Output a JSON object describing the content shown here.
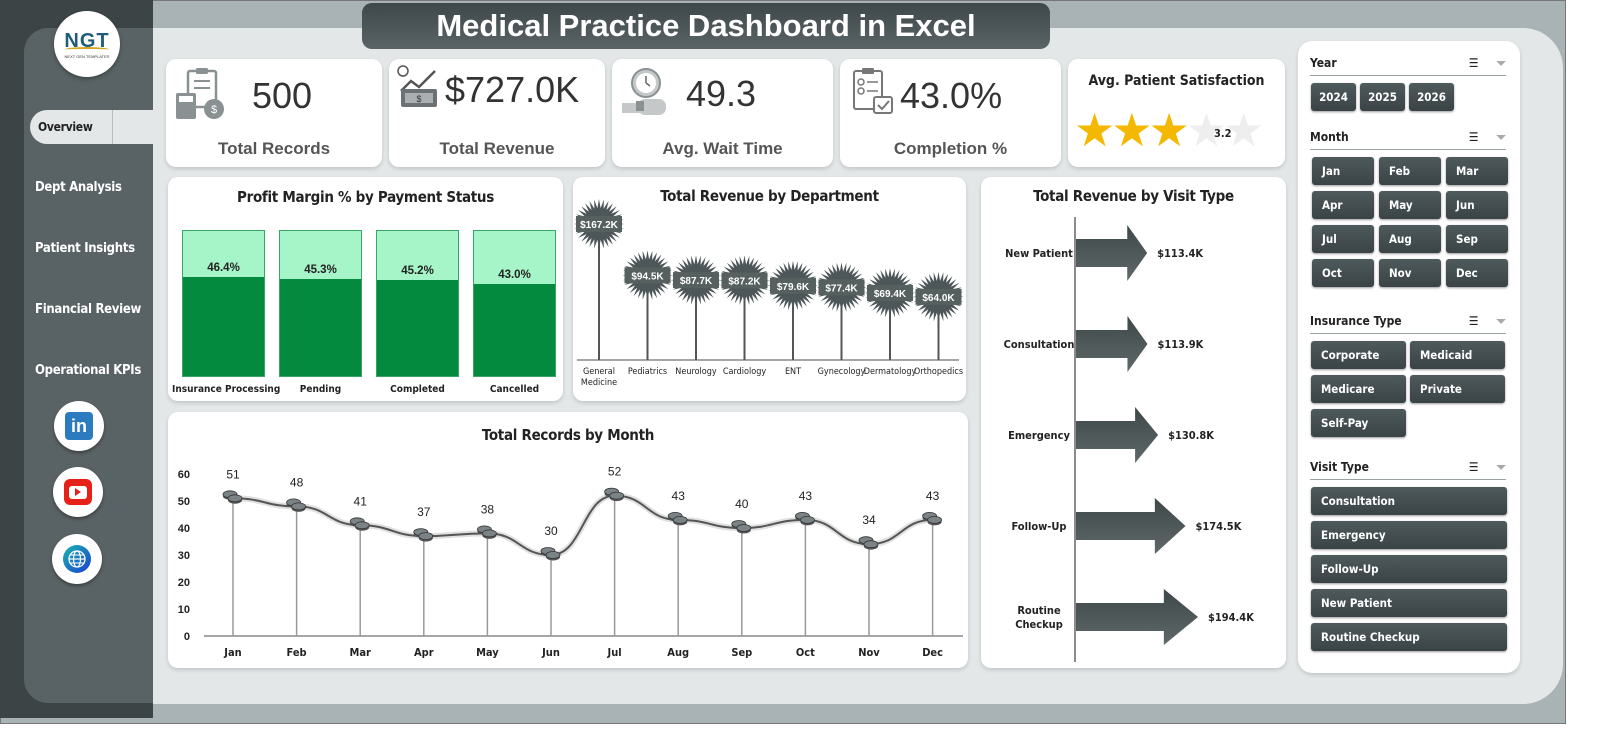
{
  "title": "Medical Practice Dashboard in Excel",
  "logo": {
    "text": "NGT",
    "tagline": "NEXT GEN TEMPLATES"
  },
  "nav": [
    {
      "label": "Overview",
      "active": true
    },
    {
      "label": "Dept Analysis"
    },
    {
      "label": "Patient Insights"
    },
    {
      "label": "Financial Review"
    },
    {
      "label": "Operational KPIs"
    }
  ],
  "social": [
    {
      "name": "linkedin",
      "glyph": "in",
      "color": "#2d7bbf"
    },
    {
      "name": "youtube",
      "glyph": "▶",
      "color": "#e62117"
    },
    {
      "name": "website",
      "glyph": "🌐",
      "color": "#1a6fc9"
    }
  ],
  "kpis": [
    {
      "value": "500",
      "label": "Total Records",
      "icon": "clipboard-calculator-icon"
    },
    {
      "value": "$727.0K",
      "label": "Total Revenue",
      "icon": "money-growth-icon"
    },
    {
      "value": "49.3",
      "label": "Avg. Wait Time",
      "icon": "clock-watch-icon"
    },
    {
      "value": "43.0%",
      "label": "Completion %",
      "icon": "checklist-icon"
    }
  ],
  "satisfaction": {
    "label": "Avg. Patient Satisfaction",
    "value": "3.2",
    "max": 5
  },
  "slicers": {
    "year": {
      "label": "Year",
      "items": [
        "2024",
        "2025",
        "2026"
      ]
    },
    "month": {
      "label": "Month",
      "items": [
        "Jan",
        "Feb",
        "Mar",
        "Apr",
        "May",
        "Jun",
        "Jul",
        "Aug",
        "Sep",
        "Oct",
        "Nov",
        "Dec"
      ]
    },
    "insurance": {
      "label": "Insurance Type",
      "items": [
        "Corporate",
        "Medicaid",
        "Medicare",
        "Private Insur...",
        "Self-Pay"
      ]
    },
    "visit": {
      "label": "Visit Type",
      "items": [
        "Consultation",
        "Emergency",
        "Follow-Up",
        "New Patient",
        "Routine Checkup"
      ]
    }
  },
  "chart_data": [
    {
      "type": "bar",
      "title": "Profit Margin % by Payment Status",
      "categories": [
        "Insurance Processing",
        "Pending",
        "Completed",
        "Cancelled"
      ],
      "values": [
        46.4,
        45.3,
        45.2,
        43.0
      ],
      "labels": [
        "46.4%",
        "45.3%",
        "45.2%",
        "43.0%"
      ],
      "ylim": [
        0,
        100
      ]
    },
    {
      "type": "bar",
      "title": "Total Revenue  by Department",
      "categories": [
        "General Medicine",
        "Pediatrics",
        "Neurology",
        "Cardiology",
        "ENT",
        "Gynecology",
        "Dermatology",
        "Orthopedics"
      ],
      "values": [
        167.2,
        94.5,
        87.7,
        87.2,
        79.6,
        77.4,
        69.4,
        64.0
      ],
      "labels": [
        "$167.2K",
        "$94.5K",
        "$87.7K",
        "$87.2K",
        "$79.6K",
        "$77.4K",
        "$69.4K",
        "$64.0K"
      ],
      "unit": "$K"
    },
    {
      "type": "bar",
      "orientation": "horizontal",
      "title": "Total Revenue  by Visit Type",
      "categories": [
        "New Patient",
        "Consultation",
        "Emergency",
        "Follow-Up",
        "Routine Checkup"
      ],
      "values": [
        113.4,
        113.9,
        130.8,
        174.5,
        194.4
      ],
      "labels": [
        "$113.4K",
        "$113.9K",
        "$130.8K",
        "$174.5K",
        "$194.4K"
      ],
      "unit": "$K"
    },
    {
      "type": "line",
      "title": "Total Records by Month",
      "categories": [
        "Jan",
        "Feb",
        "Mar",
        "Apr",
        "May",
        "Jun",
        "Jul",
        "Aug",
        "Sep",
        "Oct",
        "Nov",
        "Dec"
      ],
      "values": [
        51,
        48,
        41,
        37,
        38,
        30,
        52,
        43,
        40,
        43,
        34,
        43
      ],
      "yticks": [
        0,
        10,
        20,
        30,
        40,
        50,
        60
      ],
      "ylim": [
        0,
        60
      ]
    }
  ]
}
